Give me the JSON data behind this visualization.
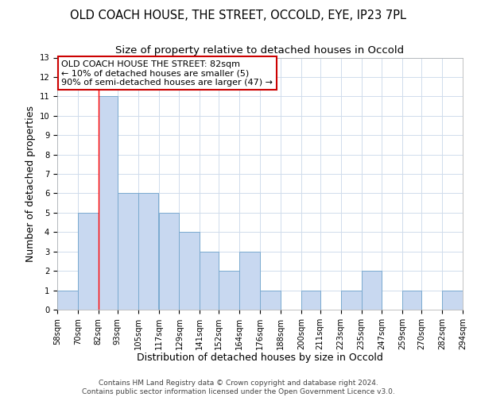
{
  "title": "OLD COACH HOUSE, THE STREET, OCCOLD, EYE, IP23 7PL",
  "subtitle": "Size of property relative to detached houses in Occold",
  "xlabel": "Distribution of detached houses by size in Occold",
  "ylabel": "Number of detached properties",
  "bin_edges": [
    58,
    70,
    82,
    93,
    105,
    117,
    129,
    141,
    152,
    164,
    176,
    188,
    200,
    211,
    223,
    235,
    247,
    259,
    270,
    282,
    294
  ],
  "bar_heights": [
    1,
    5,
    11,
    6,
    6,
    5,
    4,
    3,
    2,
    3,
    1,
    0,
    1,
    0,
    1,
    2,
    0,
    1,
    0,
    1
  ],
  "bar_color": "#c8d8f0",
  "bar_edge_color": "#7aaad0",
  "red_line_x": 82,
  "annotation_line1": "OLD COACH HOUSE THE STREET: 82sqm",
  "annotation_line2": "← 10% of detached houses are smaller (5)",
  "annotation_line3": "90% of semi-detached houses are larger (47) →",
  "annotation_box_color": "#ffffff",
  "annotation_box_edge_color": "#cc0000",
  "ylim": [
    0,
    13
  ],
  "yticks": [
    0,
    1,
    2,
    3,
    4,
    5,
    6,
    7,
    8,
    9,
    10,
    11,
    12,
    13
  ],
  "tick_labels": [
    "58sqm",
    "70sqm",
    "82sqm",
    "93sqm",
    "105sqm",
    "117sqm",
    "129sqm",
    "141sqm",
    "152sqm",
    "164sqm",
    "176sqm",
    "188sqm",
    "200sqm",
    "211sqm",
    "223sqm",
    "235sqm",
    "247sqm",
    "259sqm",
    "270sqm",
    "282sqm",
    "294sqm"
  ],
  "footer_text": "Contains HM Land Registry data © Crown copyright and database right 2024.\nContains public sector information licensed under the Open Government Licence v3.0.",
  "grid_color": "#d0dcec",
  "title_fontsize": 10.5,
  "subtitle_fontsize": 9.5,
  "xlabel_fontsize": 9,
  "ylabel_fontsize": 9,
  "tick_fontsize": 7.2,
  "annotation_fontsize": 8,
  "footer_fontsize": 6.5
}
